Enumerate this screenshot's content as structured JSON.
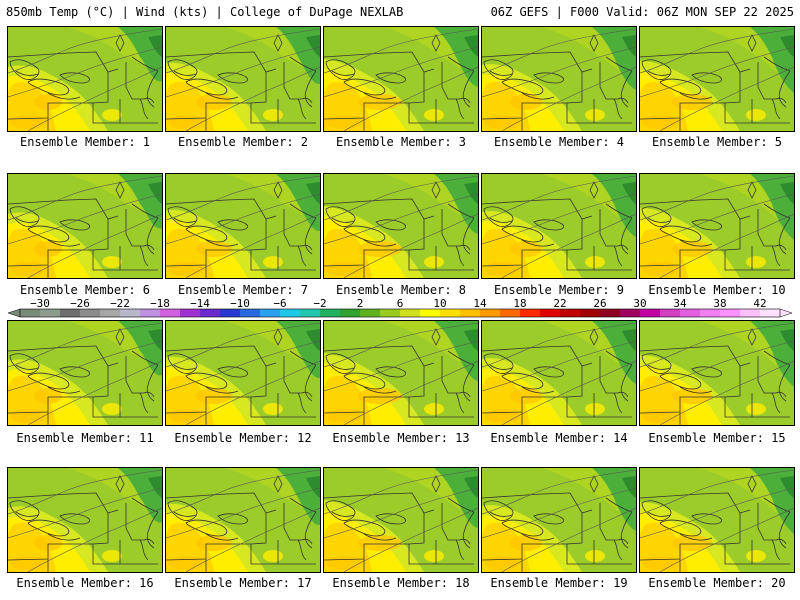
{
  "header": {
    "title_left": "850mb Temp (°C) | Wind (kts) | College of DuPage NEXLAB",
    "title_right": "06Z GEFS | F000 Valid: 06Z MON SEP 22 2025"
  },
  "panels": [
    {
      "label": "Ensemble Member: 1"
    },
    {
      "label": "Ensemble Member: 2"
    },
    {
      "label": "Ensemble Member: 3"
    },
    {
      "label": "Ensemble Member: 4"
    },
    {
      "label": "Ensemble Member: 5"
    },
    {
      "label": "Ensemble Member: 6"
    },
    {
      "label": "Ensemble Member: 7"
    },
    {
      "label": "Ensemble Member: 8"
    },
    {
      "label": "Ensemble Member: 9"
    },
    {
      "label": "Ensemble Member: 10"
    },
    {
      "label": "Ensemble Member: 11"
    },
    {
      "label": "Ensemble Member: 12"
    },
    {
      "label": "Ensemble Member: 13"
    },
    {
      "label": "Ensemble Member: 14"
    },
    {
      "label": "Ensemble Member: 15"
    },
    {
      "label": "Ensemble Member: 16"
    },
    {
      "label": "Ensemble Member: 17"
    },
    {
      "label": "Ensemble Member: 18"
    },
    {
      "label": "Ensemble Member: 19"
    },
    {
      "label": "Ensemble Member: 20"
    }
  ],
  "colorbar": {
    "min": -32,
    "max": 44,
    "step": 2,
    "tick_labels": [
      "-30",
      "-26",
      "-22",
      "-18",
      "-14",
      "-10",
      "-6",
      "-2",
      "2",
      "6",
      "10",
      "14",
      "18",
      "22",
      "26",
      "30",
      "34",
      "38",
      "42"
    ],
    "colors": [
      "#7a8a7a",
      "#8d9a8d",
      "#6e6e6e",
      "#8c8c8c",
      "#a6a6a6",
      "#b8b8c8",
      "#c090e0",
      "#d060e0",
      "#a030d0",
      "#6a2ad0",
      "#2a3ad0",
      "#2a6ae0",
      "#2aa0f0",
      "#20c8e8",
      "#20c8b0",
      "#20b060",
      "#30a030",
      "#60b020",
      "#9acc20",
      "#d0e020",
      "#ffff00",
      "#ffe000",
      "#ffc000",
      "#ff9a00",
      "#ff6a00",
      "#ff2a00",
      "#e00000",
      "#c00000",
      "#a00000",
      "#900020",
      "#a00060",
      "#c000a0",
      "#d040c0",
      "#e060e0",
      "#f080f0",
      "#ff90ff",
      "#ffc0ff",
      "#ffe0ff"
    ]
  }
}
